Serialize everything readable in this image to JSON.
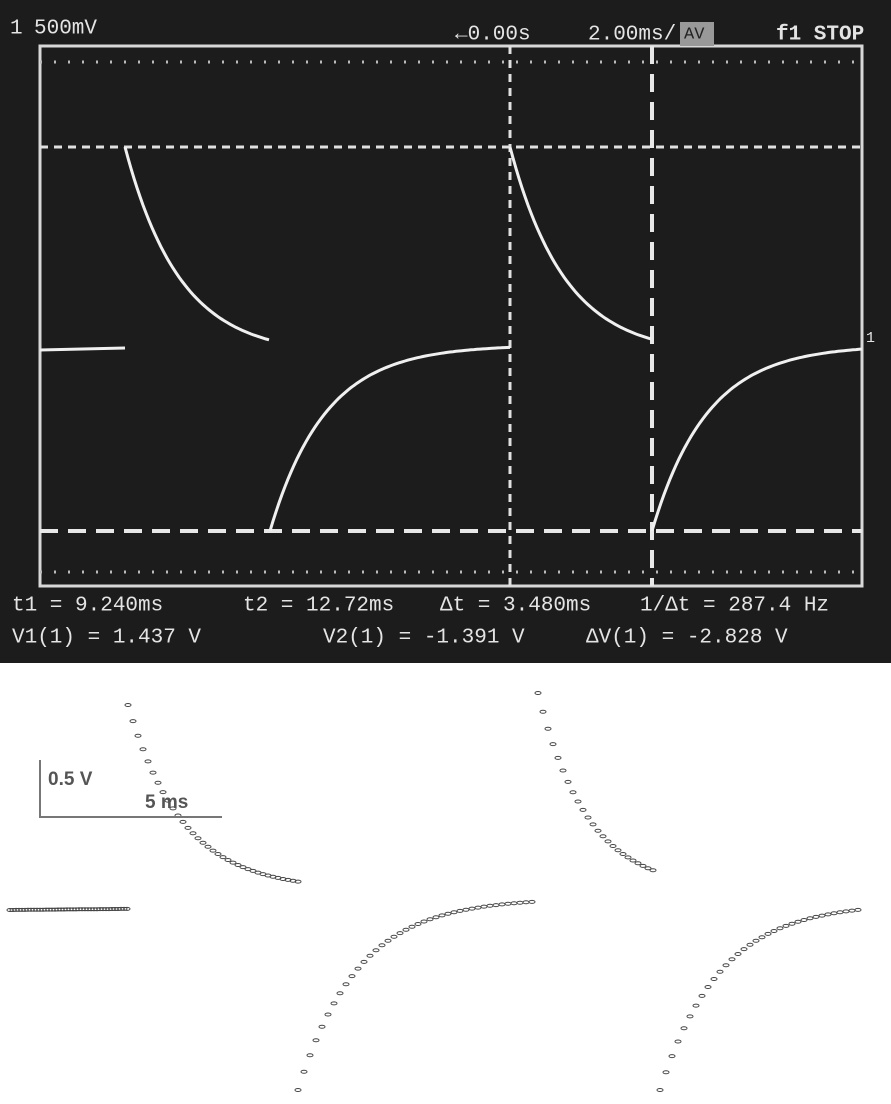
{
  "scope": {
    "channel": "1",
    "volts_per_div": "500mV",
    "delay": "←0.00s",
    "time_per_div": "2.00ms/",
    "acq_mode": "AV",
    "trigger": "f1 STOP",
    "cursor_marker": "1",
    "readouts": [
      [
        "t1 = 9.240ms",
        "t2 = 12.72ms",
        "Δt = 3.480ms",
        "1/Δt = 287.4 Hz"
      ],
      [
        "V1(1) = 1.437 V",
        "V2(1) = -1.391 V",
        "ΔV(1) = -2.828 V"
      ]
    ]
  },
  "model_plot": {
    "voltage_scale": "0.5 V",
    "time_scale": "5 ms"
  }
}
